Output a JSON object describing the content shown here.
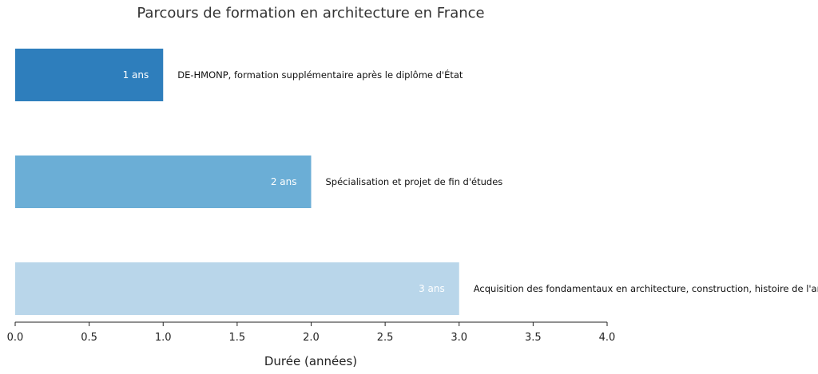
{
  "chart_data": {
    "type": "bar",
    "orientation": "horizontal",
    "title": "Parcours de formation en architecture en France",
    "xlabel": "Durée (années)",
    "ylabel": "",
    "xlim": [
      0,
      4.0
    ],
    "xticks": [
      0.0,
      0.5,
      1.0,
      1.5,
      2.0,
      2.5,
      3.0,
      3.5,
      4.0
    ],
    "xtick_labels": [
      "0.0",
      "0.5",
      "1.0",
      "1.5",
      "2.0",
      "2.5",
      "3.0",
      "3.5",
      "4.0"
    ],
    "grid": false,
    "bars": [
      {
        "value": 1,
        "value_label": "1 ans",
        "description": "DE-HMONP, formation supplémentaire après le diplôme d'État",
        "color": "#2e7ebc"
      },
      {
        "value": 2,
        "value_label": "2 ans",
        "description": "Spécialisation et projet de fin d'études",
        "color": "#6baed6"
      },
      {
        "value": 3,
        "value_label": "3 ans",
        "description": "Acquisition des fondamentaux en architecture, construction, histoire de l'art",
        "color": "#b9d6ea"
      }
    ]
  }
}
